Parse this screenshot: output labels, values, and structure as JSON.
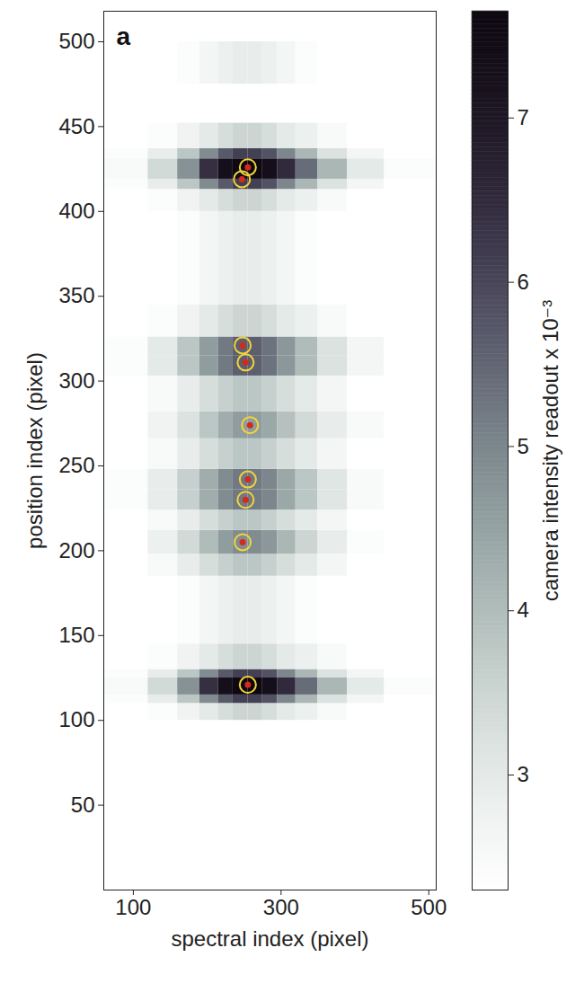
{
  "chart_data": {
    "type": "heatmap",
    "panel_label": "a",
    "x_label": "spectral index (pixel)",
    "y_label": "position index (pixel)",
    "xlim": [
      60,
      510
    ],
    "ylim": [
      0,
      518
    ],
    "xticks": [
      100,
      300,
      500
    ],
    "yticks": [
      50,
      100,
      150,
      200,
      250,
      300,
      350,
      400,
      450,
      500
    ],
    "grid": false,
    "cells": {
      "x_edges": [
        60,
        120,
        160,
        190,
        215,
        235,
        255,
        275,
        295,
        320,
        350,
        390,
        440,
        510
      ],
      "rows": [
        {
          "y0": 100,
          "y1": 110,
          "values": [
            2.3,
            2.4,
            2.7,
            3.0,
            3.3,
            3.5,
            3.5,
            3.3,
            3.0,
            2.8,
            2.5,
            2.3,
            2.3
          ]
        },
        {
          "y0": 110,
          "y1": 115,
          "values": [
            2.4,
            2.9,
            3.8,
            4.9,
            5.7,
            6.1,
            6.1,
            5.8,
            5.0,
            4.1,
            3.2,
            2.6,
            2.3
          ]
        },
        {
          "y0": 115,
          "y1": 125,
          "values": [
            2.5,
            3.4,
            4.8,
            6.4,
            7.3,
            7.6,
            7.6,
            7.3,
            6.5,
            5.4,
            4.1,
            3.0,
            2.4
          ]
        },
        {
          "y0": 125,
          "y1": 130,
          "values": [
            2.4,
            2.9,
            3.8,
            4.9,
            5.7,
            6.1,
            6.1,
            5.8,
            5.0,
            4.1,
            3.2,
            2.6,
            2.3
          ]
        },
        {
          "y0": 130,
          "y1": 145,
          "values": [
            2.3,
            2.4,
            2.7,
            3.0,
            3.3,
            3.5,
            3.5,
            3.3,
            3.0,
            2.8,
            2.5,
            2.3,
            2.3
          ]
        },
        {
          "y0": 145,
          "y1": 185,
          "values": [
            2.3,
            2.3,
            2.4,
            2.6,
            2.8,
            2.9,
            2.9,
            2.8,
            2.6,
            2.4,
            2.3,
            2.3,
            2.3
          ]
        },
        {
          "y0": 185,
          "y1": 198,
          "values": [
            2.3,
            2.5,
            2.9,
            3.3,
            3.6,
            3.8,
            3.8,
            3.6,
            3.3,
            3.0,
            2.6,
            2.3,
            2.3
          ]
        },
        {
          "y0": 198,
          "y1": 212,
          "values": [
            2.3,
            2.8,
            3.4,
            4.0,
            4.6,
            4.9,
            4.9,
            4.7,
            4.1,
            3.5,
            2.9,
            2.4,
            2.3
          ]
        },
        {
          "y0": 212,
          "y1": 224,
          "values": [
            2.3,
            2.5,
            2.9,
            3.3,
            3.6,
            3.8,
            3.8,
            3.6,
            3.3,
            3.0,
            2.6,
            2.3,
            2.3
          ]
        },
        {
          "y0": 224,
          "y1": 236,
          "values": [
            2.4,
            2.9,
            3.6,
            4.3,
            4.9,
            5.2,
            5.2,
            5.0,
            4.4,
            3.8,
            3.1,
            2.5,
            2.3
          ]
        },
        {
          "y0": 236,
          "y1": 248,
          "values": [
            2.4,
            2.9,
            3.6,
            4.3,
            4.9,
            5.2,
            5.2,
            5.0,
            4.4,
            3.8,
            3.1,
            2.5,
            2.3
          ]
        },
        {
          "y0": 248,
          "y1": 266,
          "values": [
            2.3,
            2.5,
            2.9,
            3.3,
            3.6,
            3.8,
            3.8,
            3.6,
            3.3,
            3.0,
            2.6,
            2.3,
            2.3
          ]
        },
        {
          "y0": 266,
          "y1": 282,
          "values": [
            2.3,
            2.7,
            3.2,
            3.8,
            4.3,
            4.6,
            4.6,
            4.4,
            3.9,
            3.4,
            2.9,
            2.5,
            2.3
          ]
        },
        {
          "y0": 282,
          "y1": 303,
          "values": [
            2.3,
            2.5,
            2.9,
            3.3,
            3.6,
            3.8,
            3.8,
            3.6,
            3.3,
            3.0,
            2.6,
            2.3,
            2.3
          ]
        },
        {
          "y0": 303,
          "y1": 315,
          "values": [
            2.4,
            3.0,
            3.8,
            4.6,
            5.2,
            5.6,
            5.6,
            5.3,
            4.7,
            4.0,
            3.2,
            2.6,
            2.3
          ]
        },
        {
          "y0": 315,
          "y1": 326,
          "values": [
            2.4,
            3.0,
            3.8,
            4.6,
            5.2,
            5.6,
            5.6,
            5.3,
            4.7,
            4.0,
            3.2,
            2.6,
            2.3
          ]
        },
        {
          "y0": 326,
          "y1": 345,
          "values": [
            2.3,
            2.4,
            2.7,
            3.0,
            3.3,
            3.5,
            3.5,
            3.3,
            3.0,
            2.8,
            2.5,
            2.3,
            2.3
          ]
        },
        {
          "y0": 345,
          "y1": 400,
          "values": [
            2.3,
            2.3,
            2.4,
            2.6,
            2.8,
            2.9,
            2.9,
            2.8,
            2.6,
            2.4,
            2.3,
            2.3,
            2.3
          ]
        },
        {
          "y0": 400,
          "y1": 413,
          "values": [
            2.3,
            2.4,
            2.7,
            3.0,
            3.3,
            3.5,
            3.5,
            3.3,
            3.0,
            2.8,
            2.5,
            2.3,
            2.3
          ]
        },
        {
          "y0": 413,
          "y1": 419,
          "values": [
            2.4,
            2.9,
            3.8,
            4.9,
            5.7,
            6.1,
            6.1,
            5.8,
            5.0,
            4.1,
            3.2,
            2.6,
            2.3
          ]
        },
        {
          "y0": 419,
          "y1": 431,
          "values": [
            2.5,
            3.4,
            4.8,
            6.4,
            7.3,
            7.6,
            7.6,
            7.3,
            6.5,
            5.4,
            4.1,
            3.0,
            2.4
          ]
        },
        {
          "y0": 431,
          "y1": 437,
          "values": [
            2.4,
            2.9,
            3.8,
            4.9,
            5.7,
            6.1,
            6.1,
            5.8,
            5.0,
            4.1,
            3.2,
            2.6,
            2.3
          ]
        },
        {
          "y0": 437,
          "y1": 452,
          "values": [
            2.3,
            2.4,
            2.7,
            3.0,
            3.3,
            3.5,
            3.5,
            3.3,
            3.0,
            2.8,
            2.5,
            2.3,
            2.3
          ]
        },
        {
          "y0": 475,
          "y1": 500,
          "values": [
            2.3,
            2.3,
            2.4,
            2.6,
            2.8,
            2.9,
            2.9,
            2.8,
            2.6,
            2.4,
            2.3,
            2.3,
            2.3
          ]
        }
      ]
    },
    "colorbar": {
      "label": "camera intensity readout x 10⁻³",
      "range": [
        2.3,
        7.65
      ],
      "ticks": [
        3,
        4,
        5,
        6,
        7
      ]
    },
    "points": {
      "x": [
        255,
        247,
        248,
        252,
        258,
        255,
        252,
        248,
        255
      ],
      "y": [
        426,
        419,
        321,
        311,
        274,
        242,
        230,
        205,
        121
      ],
      "color": "#d42a1e",
      "marker": "circle"
    }
  }
}
